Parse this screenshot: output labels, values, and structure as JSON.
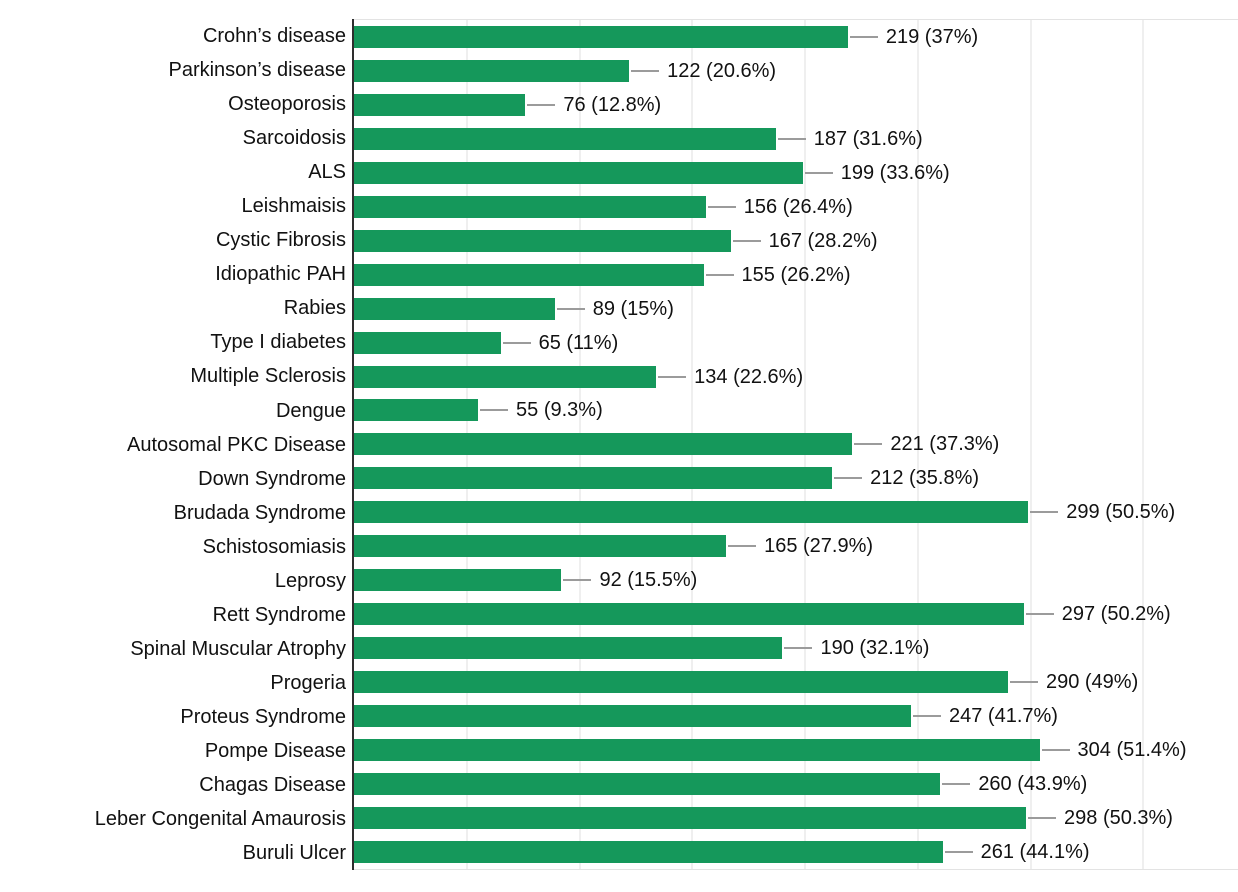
{
  "chart_data": {
    "type": "bar",
    "orientation": "horizontal",
    "categories": [
      "Crohn’s disease",
      "Parkinson’s disease",
      "Osteoporosis",
      "Sarcoidosis",
      "ALS",
      "Leishmaisis",
      "Cystic Fibrosis",
      "Idiopathic PAH",
      "Rabies",
      "Type I diabetes",
      "Multiple Sclerosis",
      "Dengue",
      "Autosomal PKC Disease",
      "Down Syndrome",
      "Brudada Syndrome",
      "Schistosomiasis",
      "Leprosy",
      "Rett Syndrome",
      "Spinal Muscular Atrophy",
      "Progeria",
      "Proteus Syndrome",
      "Pompe Disease",
      "Chagas Disease",
      "Leber Congenital Amaurosis",
      "Buruli Ulcer"
    ],
    "values": [
      219,
      122,
      76,
      187,
      199,
      156,
      167,
      155,
      89,
      65,
      134,
      55,
      221,
      212,
      299,
      165,
      92,
      297,
      190,
      290,
      247,
      304,
      260,
      298,
      261
    ],
    "percents": [
      37,
      20.6,
      12.8,
      31.6,
      33.6,
      26.4,
      28.2,
      26.2,
      15,
      11,
      22.6,
      9.3,
      37.3,
      35.8,
      50.5,
      27.9,
      15.5,
      50.2,
      32.1,
      49,
      41.7,
      51.4,
      43.9,
      50.3,
      44.1
    ],
    "data_labels": [
      "219 (37%)",
      "122 (20.6%)",
      "76 (12.8%)",
      "187 (31.6%)",
      "199 (33.6%)",
      "156 (26.4%)",
      "167 (28.2%)",
      "155 (26.2%)",
      "89 (15%)",
      "65 (11%)",
      "134 (22.6%)",
      "55 (9.3%)",
      "221 (37.3%)",
      "212 (35.8%)",
      "299 (50.5%)",
      "165 (27.9%)",
      "92 (15.5%)",
      "297 (50.2%)",
      "190 (32.1%)",
      "290 (49%)",
      "247 (41.7%)",
      "304 (51.4%)",
      "260 (43.9%)",
      "298 (50.3%)",
      "261 (44.1%)"
    ],
    "xlim": [
      0,
      392
    ],
    "grid_step": 50,
    "grid": true,
    "legend_position": "none",
    "bar_color": "#15985b",
    "leader_line_color": "#9b9b9b",
    "axis_color": "#2e2e2e",
    "grid_color": "#efefef",
    "plot_border_color": "#e3e3e3",
    "text_color": "#111111",
    "background_color": "#ffffff"
  }
}
